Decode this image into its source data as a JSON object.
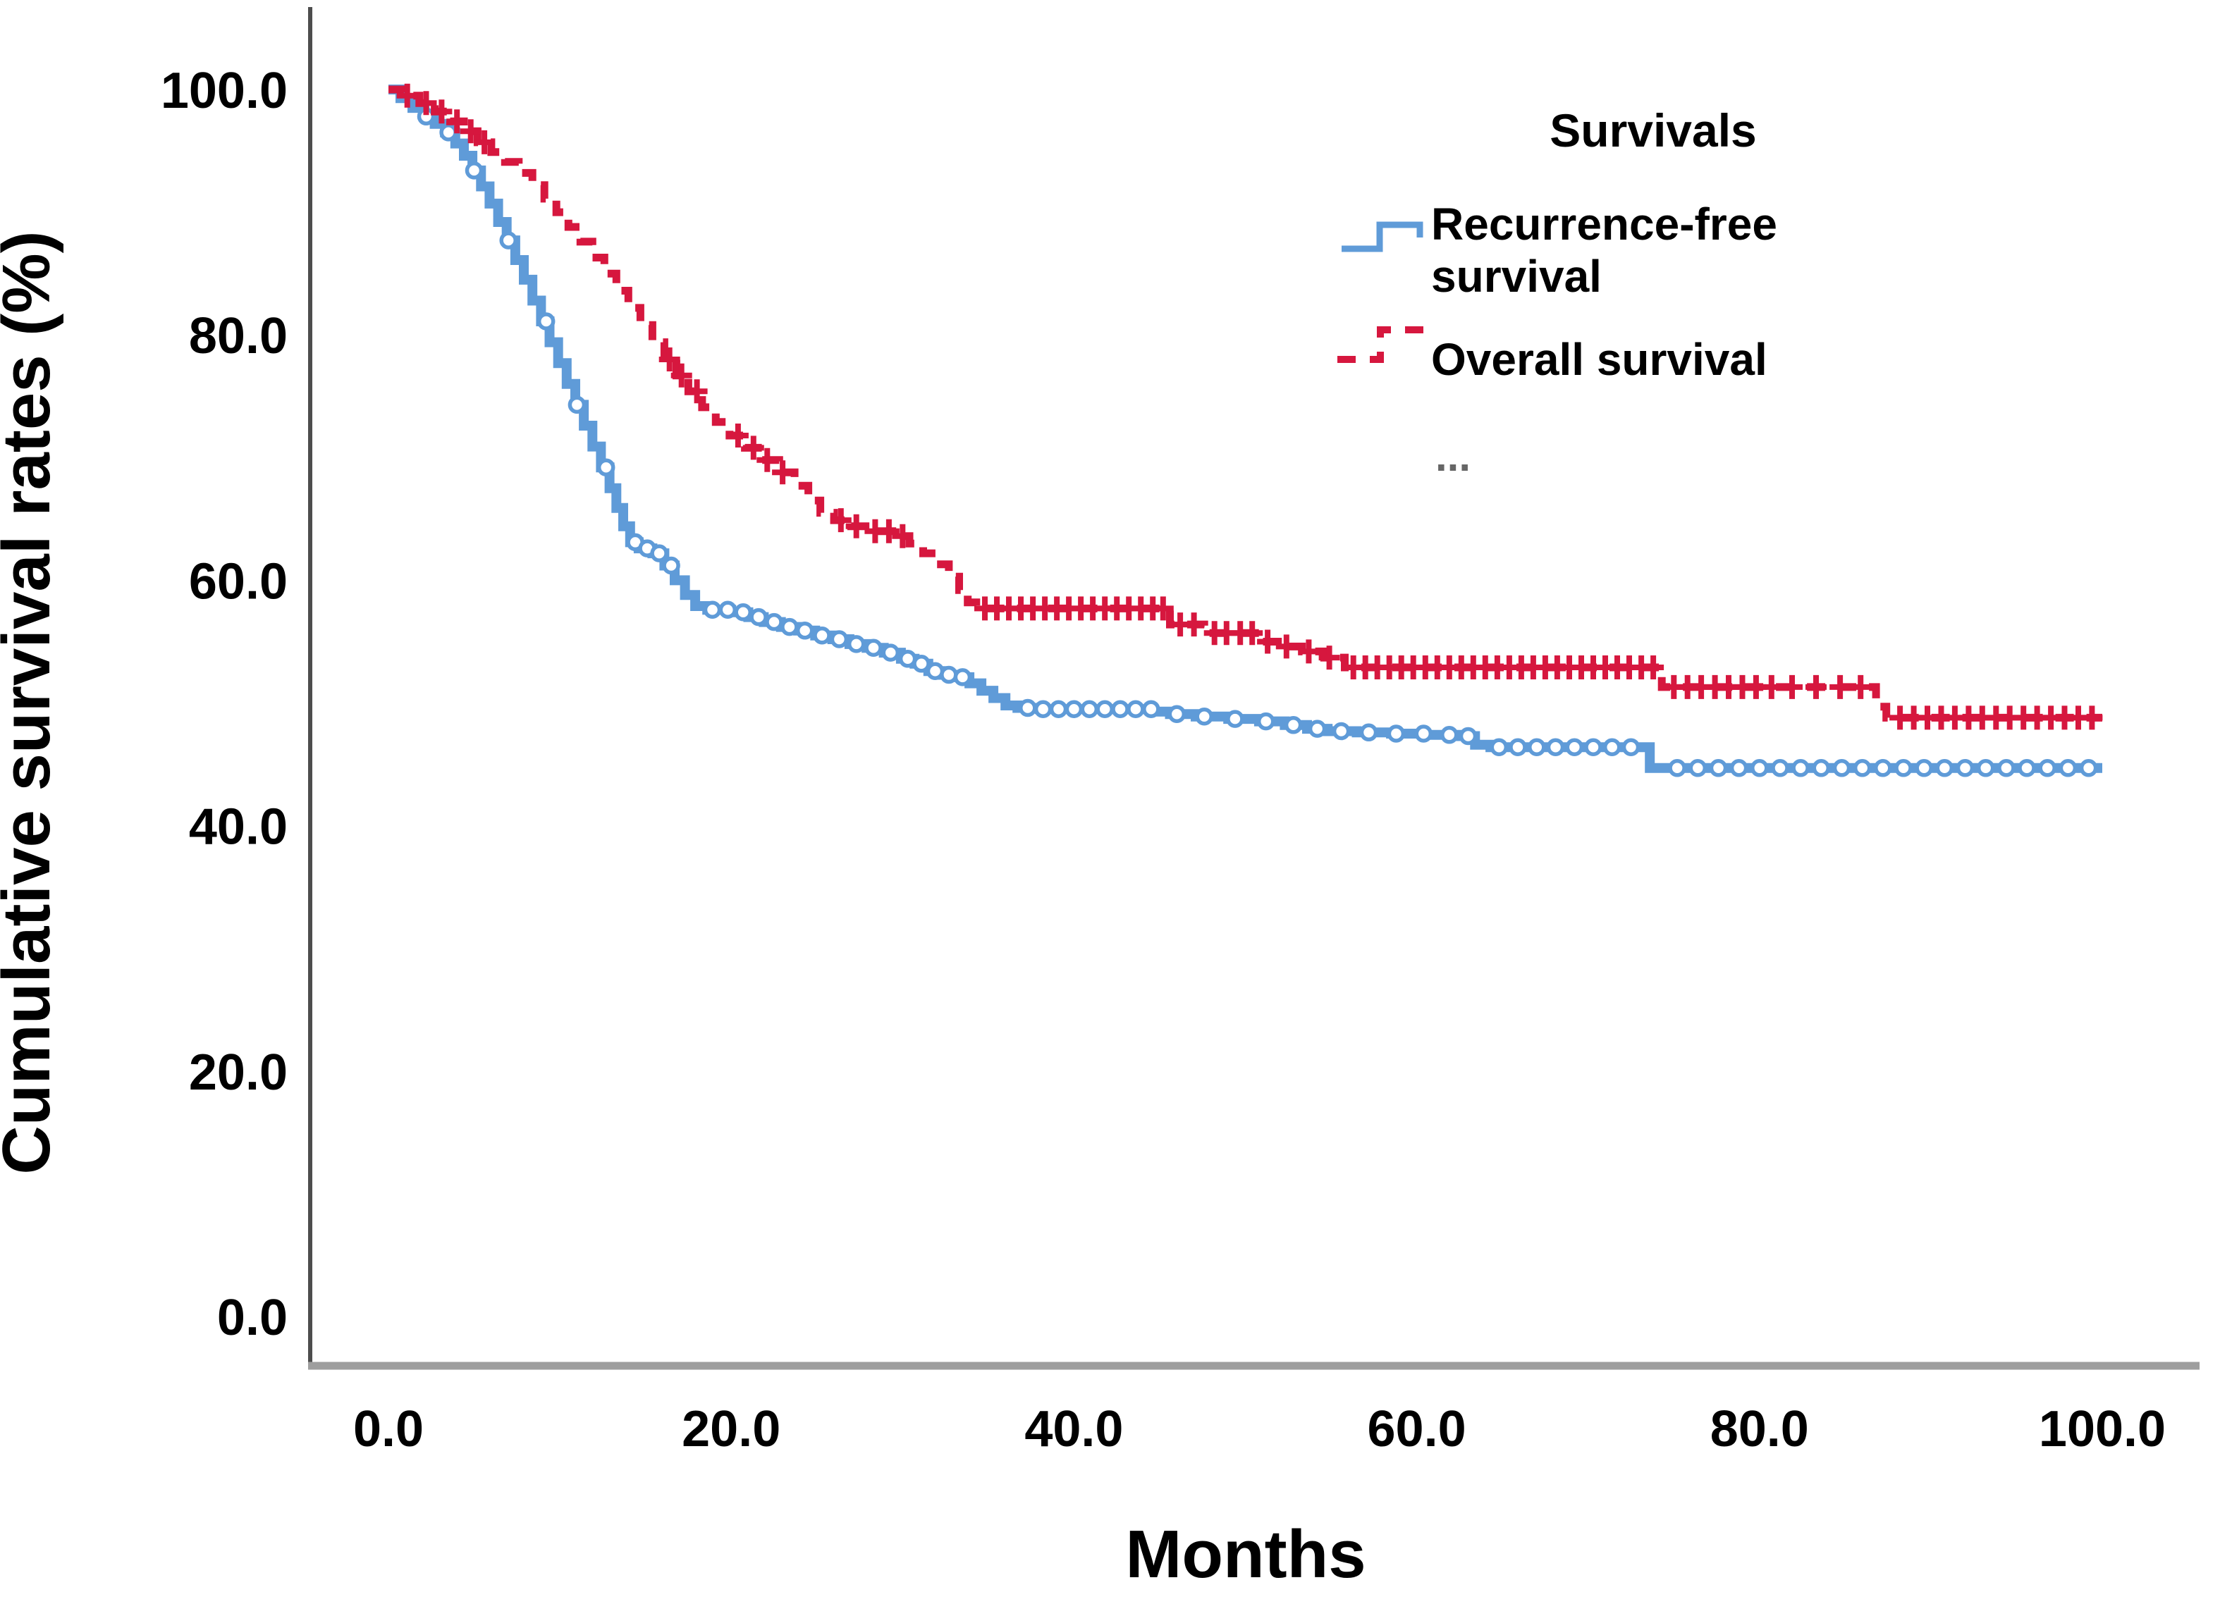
{
  "chart_data": {
    "type": "line",
    "subtype": "kaplan-meier-step",
    "title": "",
    "xlabel": "Months",
    "ylabel": "Cumulative survival rates (%)",
    "xlim": [
      0,
      100
    ],
    "ylim": [
      0,
      100
    ],
    "x_tick_labels": [
      "0.0",
      "20.0",
      "40.0",
      "60.0",
      "80.0",
      "100.0"
    ],
    "y_tick_labels": [
      "0.0",
      "20.0",
      "40.0",
      "60.0",
      "80.0",
      "100.0"
    ],
    "grid": "off",
    "legend_position": "upper-right-inside",
    "legend": {
      "title": "Survivals",
      "more_label": "...",
      "more_color": "#666666"
    },
    "axis_colors": {
      "y_axis_line": "#4d4d4d",
      "x_axis_line": "#9e9e9e"
    },
    "series": [
      {
        "name": "Recurrence-free survival",
        "label_line1": "Recurrence-free",
        "label_line2": "survival",
        "color": "#5F9BD8",
        "line_style": "solid",
        "marker": "circle-censor",
        "points": [
          [
            0,
            100
          ],
          [
            0.7,
            99.3
          ],
          [
            1.4,
            98.5
          ],
          [
            2.1,
            97.8
          ],
          [
            2.7,
            97.2
          ],
          [
            3.3,
            96.5
          ],
          [
            3.9,
            95.6
          ],
          [
            4.4,
            94.6
          ],
          [
            4.9,
            93.4
          ],
          [
            5.4,
            92.1
          ],
          [
            5.9,
            90.7
          ],
          [
            6.4,
            89.2
          ],
          [
            6.9,
            87.7
          ],
          [
            7.4,
            86.1
          ],
          [
            7.9,
            84.5
          ],
          [
            8.4,
            82.8
          ],
          [
            8.9,
            81.1
          ],
          [
            9.4,
            79.4
          ],
          [
            9.9,
            77.7
          ],
          [
            10.4,
            76.0
          ],
          [
            10.9,
            74.3
          ],
          [
            11.4,
            72.6
          ],
          [
            11.9,
            70.9
          ],
          [
            12.4,
            69.2
          ],
          [
            12.9,
            67.5
          ],
          [
            13.3,
            65.9
          ],
          [
            13.7,
            64.4
          ],
          [
            14.1,
            63.1
          ],
          [
            14.6,
            62.6
          ],
          [
            15.4,
            62.2
          ],
          [
            16.1,
            61.2
          ],
          [
            16.7,
            60.0
          ],
          [
            17.3,
            58.8
          ],
          [
            17.9,
            57.9
          ],
          [
            18.6,
            57.6
          ],
          [
            20.0,
            57.4
          ],
          [
            21.0,
            57.0
          ],
          [
            21.9,
            56.6
          ],
          [
            22.9,
            56.2
          ],
          [
            23.9,
            55.9
          ],
          [
            24.9,
            55.5
          ],
          [
            25.9,
            55.2
          ],
          [
            26.9,
            54.8
          ],
          [
            27.9,
            54.5
          ],
          [
            28.9,
            54.1
          ],
          [
            29.9,
            53.6
          ],
          [
            30.7,
            53.2
          ],
          [
            31.5,
            52.6
          ],
          [
            32.3,
            52.3
          ],
          [
            33.1,
            52.1
          ],
          [
            33.9,
            51.6
          ],
          [
            34.6,
            51.0
          ],
          [
            35.3,
            50.4
          ],
          [
            36.0,
            49.8
          ],
          [
            36.7,
            49.6
          ],
          [
            38.0,
            49.5
          ],
          [
            44.6,
            49.3
          ],
          [
            45.6,
            49.1
          ],
          [
            47.1,
            48.9
          ],
          [
            49.0,
            48.7
          ],
          [
            50.8,
            48.5
          ],
          [
            52.3,
            48.2
          ],
          [
            53.6,
            47.9
          ],
          [
            54.8,
            47.7
          ],
          [
            56.5,
            47.6
          ],
          [
            58.5,
            47.5
          ],
          [
            60.5,
            47.4
          ],
          [
            62.5,
            47.3
          ],
          [
            63.4,
            46.6
          ],
          [
            64.3,
            46.4
          ],
          [
            73.6,
            44.7
          ],
          [
            100,
            44.7
          ]
        ],
        "censor_marks_months": [
          2.2,
          3.5,
          5.0,
          7.0,
          9.2,
          11.0,
          12.7,
          14.4,
          15.1,
          15.8,
          16.5,
          18.9,
          19.8,
          20.7,
          21.6,
          22.5,
          23.4,
          24.3,
          25.3,
          26.3,
          27.3,
          28.3,
          29.3,
          30.3,
          31.1,
          31.9,
          32.7,
          33.5,
          37.3,
          38.2,
          39.1,
          40.0,
          40.9,
          41.8,
          42.7,
          43.6,
          44.5,
          46.0,
          47.6,
          49.4,
          51.2,
          52.8,
          54.2,
          55.6,
          57.2,
          58.8,
          60.4,
          61.9,
          63.0,
          64.8,
          65.9,
          67.0,
          68.1,
          69.2,
          70.3,
          71.4,
          72.5,
          75.2,
          76.4,
          77.6,
          78.8,
          80.0,
          81.2,
          82.4,
          83.6,
          84.8,
          86.0,
          87.2,
          88.4,
          89.6,
          90.8,
          92.0,
          93.2,
          94.4,
          95.6,
          96.8,
          98.0,
          99.2
        ]
      },
      {
        "name": "Overall survival",
        "label_line1": "Overall survival",
        "label_line2": "",
        "color": "#D6173E",
        "line_style": "dashed",
        "marker": "plus-censor",
        "points": [
          [
            0,
            100
          ],
          [
            0.9,
            99.5
          ],
          [
            1.8,
            98.9
          ],
          [
            2.7,
            98.2
          ],
          [
            3.6,
            97.4
          ],
          [
            4.4,
            96.6
          ],
          [
            5.2,
            95.7
          ],
          [
            6.0,
            94.9
          ],
          [
            6.8,
            94.1
          ],
          [
            7.6,
            93.2
          ],
          [
            8.4,
            92.2
          ],
          [
            9.1,
            91.1
          ],
          [
            9.8,
            90.0
          ],
          [
            10.5,
            88.8
          ],
          [
            11.2,
            87.6
          ],
          [
            11.9,
            86.3
          ],
          [
            12.6,
            85.0
          ],
          [
            13.3,
            83.6
          ],
          [
            14.0,
            82.2
          ],
          [
            14.7,
            80.8
          ],
          [
            15.4,
            79.4
          ],
          [
            16.1,
            78.0
          ],
          [
            16.8,
            76.7
          ],
          [
            17.5,
            75.4
          ],
          [
            18.3,
            74.1
          ],
          [
            19.1,
            72.9
          ],
          [
            19.9,
            71.8
          ],
          [
            20.8,
            70.8
          ],
          [
            21.8,
            69.8
          ],
          [
            22.8,
            68.8
          ],
          [
            23.7,
            67.7
          ],
          [
            24.5,
            66.5
          ],
          [
            25.2,
            65.5
          ],
          [
            26.0,
            64.9
          ],
          [
            27.0,
            64.4
          ],
          [
            28.2,
            64.0
          ],
          [
            29.4,
            63.6
          ],
          [
            30.4,
            63.0
          ],
          [
            31.2,
            62.2
          ],
          [
            32.0,
            61.3
          ],
          [
            32.7,
            60.3
          ],
          [
            33.3,
            59.2
          ],
          [
            33.8,
            58.2
          ],
          [
            34.3,
            57.7
          ],
          [
            45.6,
            56.4
          ],
          [
            47.6,
            55.7
          ],
          [
            50.9,
            55.0
          ],
          [
            51.9,
            54.6
          ],
          [
            53.3,
            54.2
          ],
          [
            54.6,
            53.7
          ],
          [
            55.8,
            52.9
          ],
          [
            74.3,
            51.3
          ],
          [
            86.8,
            49.7
          ],
          [
            87.4,
            48.8
          ],
          [
            100,
            48.8
          ]
        ],
        "censor_marks_months": [
          1.1,
          2.2,
          3.1,
          4.0,
          4.8,
          5.6,
          16.4,
          17.1,
          18.0,
          20.4,
          21.3,
          22.1,
          23.0,
          26.4,
          27.3,
          28.4,
          29.2,
          30.0,
          34.8,
          35.5,
          36.2,
          36.9,
          37.6,
          38.3,
          39.0,
          39.7,
          40.4,
          41.1,
          41.8,
          42.5,
          43.2,
          43.9,
          44.6,
          45.2,
          46.2,
          47.0,
          48.2,
          48.9,
          49.7,
          50.4,
          51.3,
          52.4,
          53.7,
          54.9,
          56.3,
          57.0,
          57.7,
          58.4,
          59.1,
          59.8,
          60.5,
          61.2,
          61.9,
          62.6,
          63.3,
          64.0,
          64.7,
          65.4,
          66.1,
          66.8,
          67.5,
          68.2,
          68.9,
          69.6,
          70.3,
          71.0,
          71.7,
          72.4,
          73.1,
          73.8,
          75.0,
          75.8,
          76.6,
          77.4,
          78.2,
          79.0,
          79.8,
          80.7,
          81.9,
          83.3,
          84.7,
          85.9,
          88.2,
          89.0,
          89.8,
          90.6,
          91.4,
          92.2,
          93.0,
          93.8,
          94.6,
          95.4,
          96.2,
          97.0,
          97.8,
          98.6,
          99.4
        ]
      }
    ]
  }
}
